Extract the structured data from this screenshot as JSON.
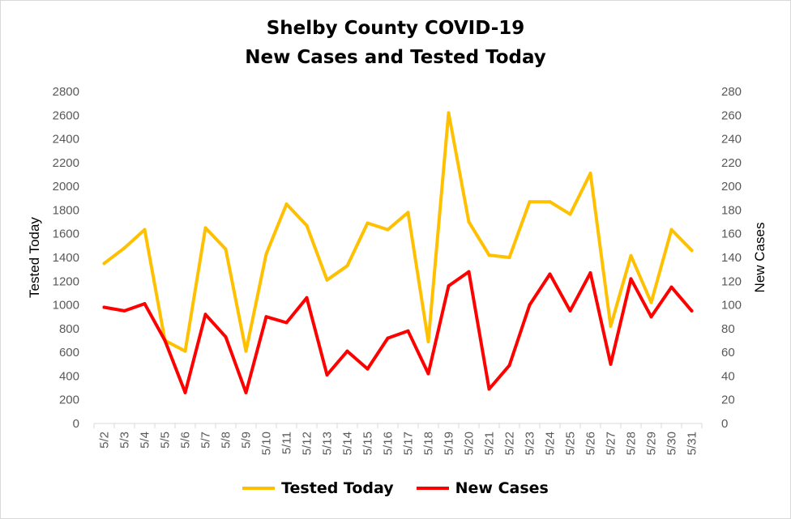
{
  "chart_data": {
    "type": "line",
    "title": "Shelby County COVID-19",
    "subtitle": "New Cases and Tested Today",
    "ylabel": "Tested Today",
    "y2label": "New Cases",
    "ylim": [
      0,
      2800
    ],
    "y2lim": [
      0,
      280
    ],
    "yticks": [
      "0",
      "200",
      "400",
      "600",
      "800",
      "1000",
      "1200",
      "1400",
      "1600",
      "1800",
      "2000",
      "2200",
      "2400",
      "2600",
      "2800"
    ],
    "y2ticks": [
      "0",
      "20",
      "40",
      "60",
      "80",
      "100",
      "120",
      "140",
      "160",
      "180",
      "200",
      "220",
      "240",
      "260",
      "280"
    ],
    "categories": [
      "5/2",
      "5/3",
      "5/4",
      "5/5",
      "5/6",
      "5/7",
      "5/8",
      "5/9",
      "5/10",
      "5/11",
      "5/12",
      "5/13",
      "5/14",
      "5/15",
      "5/16",
      "5/17",
      "5/18",
      "5/19",
      "5/20",
      "5/21",
      "5/22",
      "5/23",
      "5/24",
      "5/25",
      "5/26",
      "5/27",
      "5/28",
      "5/29",
      "5/30",
      "5/31"
    ],
    "grid": false,
    "legend": "bottom",
    "series": [
      {
        "name": "Tested Today",
        "axis": "left",
        "color": "#ffc000",
        "values": [
          1350,
          1480,
          1635,
          700,
          610,
          1650,
          1470,
          610,
          1430,
          1850,
          1670,
          1210,
          1330,
          1690,
          1635,
          1780,
          690,
          2620,
          1700,
          1420,
          1400,
          1870,
          1870,
          1765,
          2110,
          820,
          1415,
          1020,
          1635,
          1460
        ]
      },
      {
        "name": "New Cases",
        "axis": "right",
        "color": "#ff0000",
        "values": [
          98,
          95,
          101,
          70,
          26,
          92,
          73,
          26,
          90,
          85,
          106,
          41,
          61,
          46,
          72,
          78,
          42,
          116,
          128,
          29,
          49,
          100,
          126,
          95,
          127,
          50,
          122,
          90,
          115,
          95
        ]
      }
    ]
  }
}
